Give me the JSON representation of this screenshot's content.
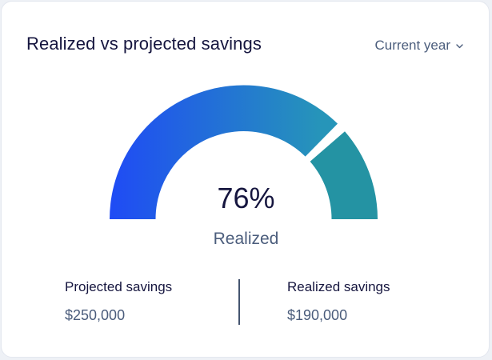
{
  "card": {
    "title": "Realized vs projected savings",
    "period_selector": {
      "label": "Current year",
      "icon": "chevron-down-icon"
    }
  },
  "gauge": {
    "percent_text": "76%",
    "label": "Realized",
    "realized_fraction": 0.76,
    "colors": {
      "realized_start": "#1f4bf5",
      "realized_end": "#2695b9",
      "remaining": "#2493a3",
      "background": "#ffffff"
    }
  },
  "stats": {
    "projected": {
      "label": "Projected savings",
      "value": "$250,000"
    },
    "realized": {
      "label": "Realized savings",
      "value": "$190,000"
    }
  }
}
